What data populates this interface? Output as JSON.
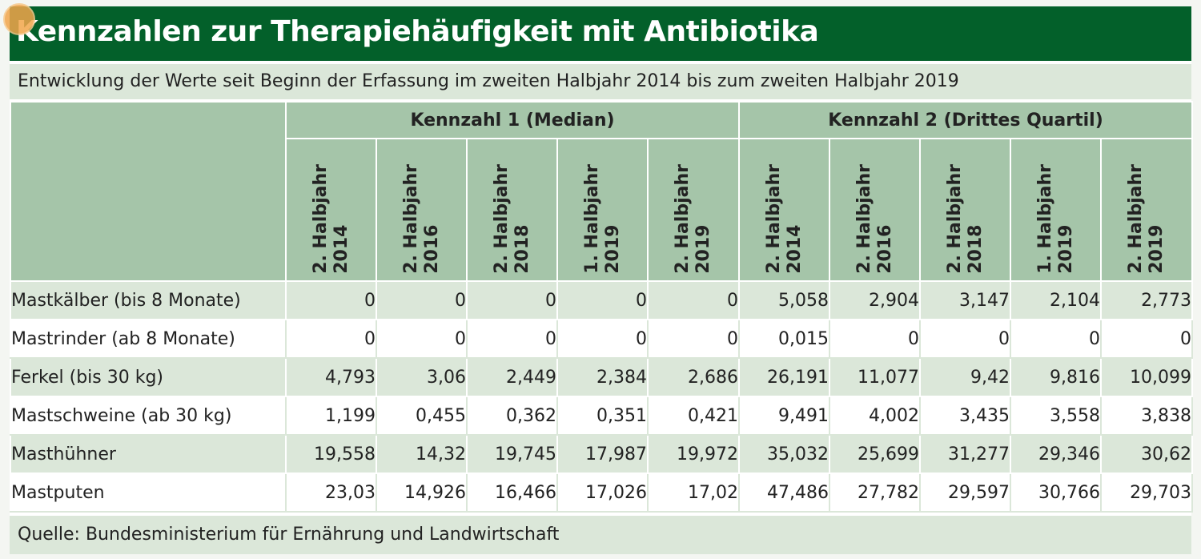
{
  "chart_data": {
    "type": "table",
    "title": "Kennzahlen zur Therapiehäufigkeit mit Antibiotika",
    "subtitle": "Entwicklung der Werte seit Beginn der Erfassung im zweiten Halbjahr 2014 bis zum zweiten Halbjahr 2019",
    "source": "Quelle: Bundesministerium für Ernährung und Landwirtschaft",
    "groups": [
      {
        "name": "Kennzahl 1 (Median)",
        "periods": [
          {
            "line1": "2. Halbjahr",
            "line2": "2014"
          },
          {
            "line1": "2. Halbjahr",
            "line2": "2016"
          },
          {
            "line1": "2. Halbjahr",
            "line2": "2018"
          },
          {
            "line1": "1. Halbjahr",
            "line2": "2019"
          },
          {
            "line1": "2. Halbjahr",
            "line2": "2019"
          }
        ]
      },
      {
        "name": "Kennzahl 2 (Drittes Quartil)",
        "periods": [
          {
            "line1": "2. Halbjahr",
            "line2": "2014"
          },
          {
            "line1": "2. Halbjahr",
            "line2": "2016"
          },
          {
            "line1": "2. Halbjahr",
            "line2": "2018"
          },
          {
            "line1": "1. Halbjahr",
            "line2": "2019"
          },
          {
            "line1": "2. Halbjahr",
            "line2": "2019"
          }
        ]
      }
    ],
    "rows": [
      {
        "label": "Mastkälber (bis 8 Monate)",
        "values": [
          "0",
          "0",
          "0",
          "0",
          "0",
          "5,058",
          "2,904",
          "3,147",
          "2,104",
          "2,773"
        ]
      },
      {
        "label": "Mastrinder (ab 8 Monate)",
        "values": [
          "0",
          "0",
          "0",
          "0",
          "0",
          "0,015",
          "0",
          "0",
          "0",
          "0"
        ]
      },
      {
        "label": "Ferkel (bis 30 kg)",
        "values": [
          "4,793",
          "3,06",
          "2,449",
          "2,384",
          "2,686",
          "26,191",
          "11,077",
          "9,42",
          "9,816",
          "10,099"
        ]
      },
      {
        "label": "Mastschweine (ab 30 kg)",
        "values": [
          "1,199",
          "0,455",
          "0,362",
          "0,351",
          "0,421",
          "9,491",
          "4,002",
          "3,435",
          "3,558",
          "3,838"
        ]
      },
      {
        "label": "Masthühner",
        "values": [
          "19,558",
          "14,32",
          "19,745",
          "17,987",
          "19,972",
          "35,032",
          "25,699",
          "31,277",
          "29,346",
          "30,62"
        ]
      },
      {
        "label": "Mastputen",
        "values": [
          "23,03",
          "14,926",
          "16,466",
          "17,026",
          "17,02",
          "47,486",
          "27,782",
          "29,597",
          "30,766",
          "29,703"
        ]
      }
    ]
  },
  "colors": {
    "title_bg": "#03602a",
    "header_bg": "#a5c5a9",
    "row_green": "#dbe7d9",
    "row_white": "#ffffff",
    "badge": "#f2a64b"
  }
}
